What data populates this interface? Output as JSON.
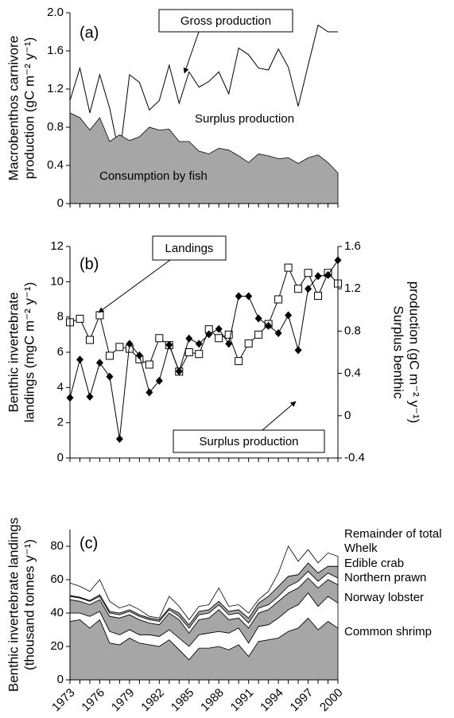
{
  "chart_data": [
    {
      "type": "area",
      "ylabel": [
        "Macrobenthos carnivore",
        "production (gC m⁻² y⁻¹)"
      ],
      "annotations": [
        "(a)",
        "Surplus production"
      ],
      "x": [
        1973,
        1974,
        1975,
        1976,
        1977,
        1978,
        1979,
        1980,
        1981,
        1982,
        1983,
        1984,
        1985,
        1986,
        1987,
        1988,
        1989,
        1990,
        1991,
        1992,
        1993,
        1994,
        1995,
        1996,
        1997,
        1998,
        1999,
        2000
      ],
      "xlim": [
        1973,
        2000
      ],
      "ylim": [
        0,
        2
      ],
      "yticks": [
        0,
        0.4,
        0.8,
        1.2,
        1.6,
        {
          "value": 2,
          "label": "2.0"
        }
      ],
      "series": [
        {
          "name": "Gross production",
          "kind": "line",
          "color": "#000000",
          "values": [
            1.08,
            1.42,
            0.95,
            1.35,
            1.0,
            0.5,
            1.35,
            1.27,
            0.98,
            1.08,
            1.45,
            1.05,
            1.38,
            1.22,
            1.28,
            1.38,
            1.15,
            1.63,
            1.56,
            1.42,
            1.4,
            1.62,
            1.43,
            1.02,
            1.45,
            1.87,
            1.8,
            1.8
          ]
        },
        {
          "name": "Consumption by fish",
          "kind": "area",
          "color": "#a6a6a6",
          "values": [
            0.95,
            0.9,
            0.77,
            0.9,
            0.65,
            0.72,
            0.66,
            0.7,
            0.8,
            0.77,
            0.78,
            0.65,
            0.65,
            0.55,
            0.52,
            0.58,
            0.56,
            0.5,
            0.43,
            0.52,
            0.5,
            0.47,
            0.48,
            0.42,
            0.48,
            0.51,
            0.43,
            0.32
          ]
        }
      ]
    },
    {
      "type": "line",
      "ylabel": [
        "Benthic invertebrate",
        "landings (mgC m⁻² y⁻¹)"
      ],
      "y2label": [
        "Surplus benthic",
        "production (gC m⁻² y⁻¹)"
      ],
      "annotations": [
        "(b)"
      ],
      "x": [
        1973,
        1974,
        1975,
        1976,
        1977,
        1978,
        1979,
        1980,
        1981,
        1982,
        1983,
        1984,
        1985,
        1986,
        1987,
        1988,
        1989,
        1990,
        1991,
        1992,
        1993,
        1994,
        1995,
        1996,
        1997,
        1998,
        1999,
        2000
      ],
      "xlim": [
        1973,
        2000
      ],
      "ylim": [
        0,
        12
      ],
      "yticks": [
        0,
        2,
        4,
        6,
        8,
        10,
        12
      ],
      "y2lim": [
        -0.4,
        1.6
      ],
      "y2ticks": [
        -0.4,
        0,
        0.4,
        0.8,
        1.2,
        1.6
      ],
      "series": [
        {
          "name": "Landings",
          "marker": "square",
          "color": "#000000",
          "values": [
            7.7,
            7.9,
            6.7,
            8.1,
            5.8,
            6.3,
            6.2,
            5.6,
            5.3,
            6.8,
            6.4,
            4.9,
            6.0,
            5.9,
            7.3,
            6.8,
            7.0,
            5.5,
            6.5,
            7.0,
            7.6,
            9.0,
            10.8,
            9.6,
            10.5,
            9.2,
            10.5,
            9.9
          ]
        },
        {
          "name": "Surplus production",
          "marker": "diamond",
          "axis": "y2",
          "color": "#000000",
          "values": [
            0.17,
            0.53,
            0.18,
            0.5,
            0.37,
            -0.22,
            0.68,
            0.57,
            0.22,
            0.33,
            0.67,
            0.42,
            0.73,
            0.68,
            0.77,
            0.82,
            0.68,
            1.13,
            1.13,
            0.92,
            0.85,
            0.78,
            0.95,
            0.62,
            1.2,
            1.32,
            1.33,
            1.47
          ]
        }
      ]
    },
    {
      "type": "area",
      "stacked": true,
      "ylabel": [
        "Benthic invertebrate landings",
        "(thousand tonnes y⁻¹)"
      ],
      "annotations": [
        "(c)"
      ],
      "x": [
        1973,
        1974,
        1975,
        1976,
        1977,
        1978,
        1979,
        1980,
        1981,
        1982,
        1983,
        1984,
        1985,
        1986,
        1987,
        1988,
        1989,
        1990,
        1991,
        1992,
        1993,
        1994,
        1995,
        1996,
        1997,
        1998,
        1999,
        2000
      ],
      "xlim": [
        1973,
        2000
      ],
      "xticks": [
        1973,
        1976,
        1979,
        1982,
        1985,
        1988,
        1991,
        1994,
        1997,
        2000
      ],
      "ylim": [
        0,
        90
      ],
      "yticks": [
        0,
        20,
        40,
        60,
        80
      ],
      "series": [
        {
          "name": "Common shrimp",
          "color": "#a6a6a6",
          "values": [
            35,
            36,
            31,
            36,
            22,
            21,
            25,
            22,
            21,
            20,
            24,
            18,
            12,
            19,
            19,
            20,
            18,
            21,
            14,
            23,
            24,
            25,
            29,
            31,
            37,
            30,
            35,
            31
          ]
        },
        {
          "name": "Norway lobster",
          "color": "#ffffff",
          "values": [
            5,
            4,
            7,
            5,
            7,
            6,
            5,
            5,
            6,
            6,
            6,
            7,
            8,
            8,
            9,
            9,
            10,
            10,
            8,
            9,
            9,
            12,
            13,
            14,
            15,
            14,
            15,
            15
          ]
        },
        {
          "name": "Northern prawn",
          "color": "#a6a6a6",
          "values": [
            8,
            7,
            7,
            7,
            9,
            10,
            9,
            9,
            7,
            7,
            10,
            11,
            8,
            9,
            9,
            13,
            8,
            6,
            9,
            8,
            9,
            10,
            10,
            10,
            9,
            11,
            10,
            11
          ]
        },
        {
          "name": "Edible crab",
          "color": "#ffffff",
          "values": [
            2,
            2,
            2,
            2,
            2,
            2,
            2,
            2,
            2,
            2,
            2,
            2,
            3,
            3,
            3,
            3,
            3,
            3,
            3,
            3,
            3,
            3,
            4,
            4,
            4,
            4,
            4,
            4
          ]
        },
        {
          "name": "Whelk",
          "color": "#a6a6a6",
          "values": [
            0.5,
            0.5,
            0.5,
            1,
            1,
            1,
            1,
            1,
            1,
            1,
            1,
            2,
            2,
            2,
            2,
            2,
            2,
            2,
            3,
            3,
            5,
            6,
            6,
            4,
            5,
            5,
            4,
            7
          ]
        },
        {
          "name": "Remainder of total",
          "color": "#ffffff",
          "values": [
            7.5,
            6.5,
            5.5,
            9,
            6,
            3,
            3,
            3,
            1,
            1,
            7,
            4,
            3,
            3,
            3,
            8,
            3,
            3,
            3,
            2,
            3,
            8,
            18,
            8,
            8,
            6,
            8,
            6
          ]
        }
      ]
    }
  ]
}
